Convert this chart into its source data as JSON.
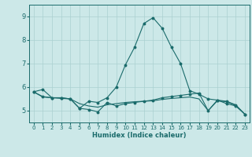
{
  "xlabel": "Humidex (Indice chaleur)",
  "background_color": "#cce8e8",
  "grid_color": "#aad0d0",
  "line_color": "#1a6b6b",
  "xlim": [
    -0.5,
    23.5
  ],
  "ylim": [
    4.5,
    9.5
  ],
  "xticks": [
    0,
    1,
    2,
    3,
    4,
    5,
    6,
    7,
    8,
    9,
    10,
    11,
    12,
    13,
    14,
    15,
    16,
    17,
    18,
    19,
    20,
    21,
    22,
    23
  ],
  "yticks": [
    5,
    6,
    7,
    8,
    9
  ],
  "line1_x": [
    0,
    1,
    2,
    3,
    4,
    5,
    6,
    7,
    8,
    9,
    10,
    11,
    12,
    13,
    14,
    15,
    16,
    17,
    18,
    19,
    20,
    21,
    22,
    23
  ],
  "line1_y": [
    5.8,
    5.9,
    5.55,
    5.55,
    5.5,
    5.1,
    5.4,
    5.35,
    5.55,
    6.0,
    6.95,
    7.7,
    8.7,
    8.95,
    8.5,
    7.7,
    7.0,
    5.85,
    5.7,
    5.5,
    5.45,
    5.3,
    5.2,
    4.85
  ],
  "line2_x": [
    0,
    1,
    2,
    3,
    4,
    5,
    6,
    7,
    8,
    9,
    10,
    11,
    12,
    13,
    14,
    15,
    16,
    17,
    18,
    19,
    20,
    21,
    22,
    23
  ],
  "line2_y": [
    5.8,
    5.6,
    5.55,
    5.55,
    5.5,
    5.1,
    5.05,
    4.95,
    5.35,
    5.2,
    5.3,
    5.35,
    5.4,
    5.45,
    5.55,
    5.6,
    5.65,
    5.7,
    5.75,
    5.0,
    5.45,
    5.4,
    5.25,
    4.85
  ],
  "line3_x": [
    0,
    1,
    2,
    3,
    4,
    5,
    6,
    7,
    8,
    9,
    10,
    11,
    12,
    13,
    14,
    15,
    16,
    17,
    18,
    19,
    20,
    21,
    22,
    23
  ],
  "line3_y": [
    5.8,
    5.58,
    5.55,
    5.52,
    5.5,
    5.3,
    5.2,
    5.15,
    5.25,
    5.3,
    5.35,
    5.38,
    5.4,
    5.42,
    5.48,
    5.52,
    5.55,
    5.58,
    5.5,
    5.0,
    5.42,
    5.38,
    5.22,
    4.85
  ]
}
